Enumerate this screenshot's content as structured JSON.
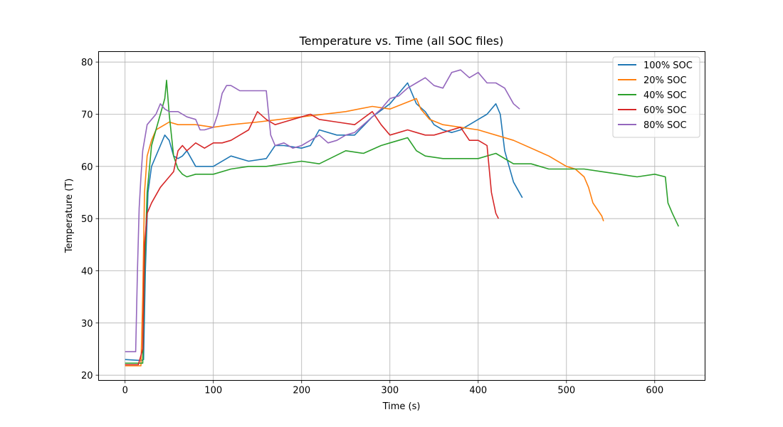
{
  "chart_data": {
    "type": "line",
    "title": "Temperature vs. Time (all SOC files)",
    "xlabel": "Time (s)",
    "ylabel": "Temperature (T)",
    "xlim": [
      -30,
      657
    ],
    "ylim": [
      19,
      82
    ],
    "xticks": [
      0,
      100,
      200,
      300,
      400,
      500,
      600
    ],
    "yticks": [
      20,
      30,
      40,
      50,
      60,
      70,
      80
    ],
    "grid": true,
    "legend_position": "top-right",
    "series": [
      {
        "name": "100% SOC",
        "color": "#1f77b4",
        "x": [
          0,
          18,
          21,
          23,
          26,
          30,
          35,
          40,
          45,
          50,
          55,
          60,
          65,
          70,
          80,
          100,
          120,
          140,
          160,
          170,
          180,
          200,
          210,
          220,
          240,
          260,
          280,
          300,
          310,
          320,
          325,
          330,
          340,
          350,
          360,
          370,
          380,
          390,
          400,
          410,
          420,
          425,
          430,
          440,
          450
        ],
        "y": [
          23,
          22.8,
          23,
          40,
          55,
          60,
          62,
          64,
          66,
          65,
          62,
          61.5,
          62,
          63,
          60,
          60,
          62,
          61,
          61.5,
          64,
          64,
          63.5,
          64,
          67,
          66,
          66,
          69.5,
          72,
          74,
          76,
          74,
          72,
          70.5,
          68,
          67,
          66.5,
          67,
          68,
          69,
          70,
          72,
          70,
          63,
          57,
          54
        ]
      },
      {
        "name": "20% SOC",
        "color": "#ff7f0e",
        "x": [
          0,
          18,
          20,
          22,
          25,
          30,
          35,
          40,
          45,
          50,
          60,
          80,
          100,
          120,
          150,
          200,
          250,
          280,
          300,
          330,
          335,
          345,
          360,
          380,
          400,
          440,
          480,
          500,
          510,
          520,
          525,
          530,
          540,
          542
        ],
        "y": [
          21.8,
          21.8,
          35,
          55,
          62,
          65,
          67,
          67.5,
          68,
          68.5,
          68,
          68,
          67.5,
          68,
          68.5,
          69.5,
          70.5,
          71.5,
          71,
          73,
          71,
          69,
          68,
          67.5,
          67,
          65,
          62,
          60,
          59.5,
          58,
          56,
          53,
          50.5,
          49.5
        ]
      },
      {
        "name": "40% SOC",
        "color": "#2ca02c",
        "x": [
          0,
          20,
          22,
          25,
          30,
          35,
          40,
          45,
          47,
          50,
          55,
          60,
          65,
          70,
          80,
          100,
          120,
          140,
          160,
          200,
          220,
          250,
          270,
          290,
          300,
          310,
          320,
          330,
          340,
          360,
          380,
          400,
          420,
          440,
          460,
          480,
          500,
          520,
          540,
          560,
          580,
          600,
          612,
          615,
          620,
          627
        ],
        "y": [
          22.3,
          22.3,
          40,
          55,
          64,
          67,
          70,
          73,
          76.5,
          70,
          62,
          59.5,
          58.5,
          58,
          58.5,
          58.5,
          59.5,
          60,
          60,
          61,
          60.5,
          63,
          62.5,
          64,
          64.5,
          65,
          65.5,
          63,
          62,
          61.5,
          61.5,
          61.5,
          62.5,
          60.5,
          60.5,
          59.5,
          59.5,
          59.5,
          59,
          58.5,
          58,
          58.5,
          58,
          53,
          51,
          48.5
        ]
      },
      {
        "name": "60% SOC",
        "color": "#d62728",
        "x": [
          0,
          15,
          20,
          22,
          25,
          30,
          40,
          50,
          55,
          60,
          65,
          70,
          80,
          90,
          100,
          110,
          120,
          130,
          140,
          150,
          160,
          170,
          180,
          190,
          200,
          210,
          220,
          240,
          260,
          280,
          290,
          300,
          310,
          320,
          330,
          340,
          350,
          360,
          370,
          380,
          390,
          400,
          405,
          410,
          415,
          420,
          423
        ],
        "y": [
          22,
          22,
          25,
          45,
          51,
          53,
          56,
          58,
          59,
          63,
          64,
          63,
          64.5,
          63.5,
          64.5,
          64.5,
          65,
          66,
          67,
          70.5,
          69,
          68,
          68.5,
          69,
          69.5,
          70,
          69,
          68.5,
          68,
          70.5,
          68,
          66,
          66.5,
          67,
          66.5,
          66,
          66,
          66.5,
          67,
          67.5,
          65,
          65,
          64.5,
          64,
          55,
          51,
          50
        ]
      },
      {
        "name": "80% SOC",
        "color": "#9467bd",
        "x": [
          0,
          12,
          14,
          16,
          18,
          20,
          25,
          30,
          35,
          40,
          45,
          50,
          60,
          70,
          80,
          85,
          90,
          100,
          105,
          110,
          115,
          120,
          125,
          130,
          140,
          150,
          160,
          165,
          170,
          180,
          190,
          200,
          210,
          220,
          230,
          240,
          250,
          260,
          270,
          280,
          290,
          300,
          310,
          320,
          330,
          340,
          350,
          360,
          370,
          380,
          390,
          400,
          410,
          420,
          430,
          440,
          447
        ],
        "y": [
          24.5,
          24.5,
          40,
          52,
          58,
          63,
          68,
          69,
          70,
          72,
          71,
          70.5,
          70.5,
          69.5,
          69,
          67,
          67,
          67.5,
          70,
          74,
          75.5,
          75.5,
          75,
          74.5,
          74.5,
          74.5,
          74.5,
          66,
          64,
          64.5,
          63.5,
          64,
          65,
          66,
          64.5,
          65,
          66,
          66.5,
          68,
          69.5,
          71,
          73,
          73.5,
          75,
          76,
          77,
          75.5,
          75,
          78,
          78.5,
          77,
          78,
          76,
          76,
          75,
          72,
          71
        ]
      }
    ]
  }
}
